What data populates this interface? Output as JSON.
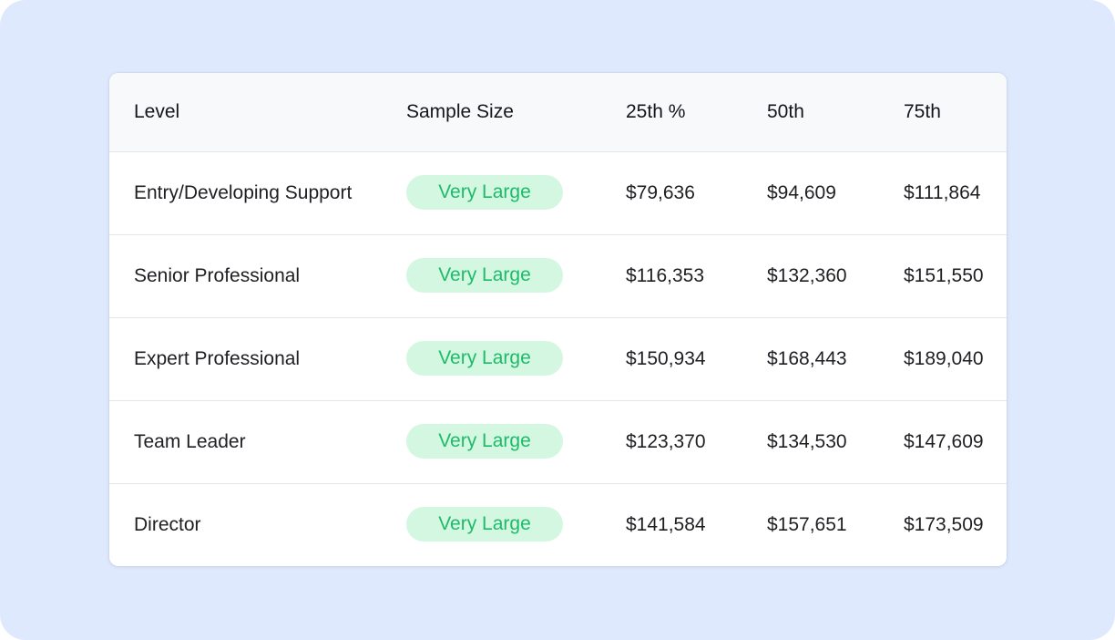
{
  "table": {
    "headers": {
      "level": "Level",
      "sample_size": "Sample Size",
      "p25": "25th %",
      "p50": "50th",
      "p75": "75th"
    },
    "rows": [
      {
        "level": "Entry/Developing Support",
        "sample_size": "Very Large",
        "p25": "$79,636",
        "p50": "$94,609",
        "p75": "$111,864"
      },
      {
        "level": "Senior Professional",
        "sample_size": "Very Large",
        "p25": "$116,353",
        "p50": "$132,360",
        "p75": "$151,550"
      },
      {
        "level": "Expert Professional",
        "sample_size": "Very Large",
        "p25": "$150,934",
        "p50": "$168,443",
        "p75": "$189,040"
      },
      {
        "level": "Team Leader",
        "sample_size": "Very Large",
        "p25": "$123,370",
        "p50": "$134,530",
        "p75": "$147,609"
      },
      {
        "level": "Director",
        "sample_size": "Very Large",
        "p25": "$141,584",
        "p50": "$157,651",
        "p75": "$173,509"
      }
    ]
  },
  "colors": {
    "background": "#dfe9fd",
    "badge_bg": "#d3f7e1",
    "badge_text": "#1fbb6a"
  }
}
